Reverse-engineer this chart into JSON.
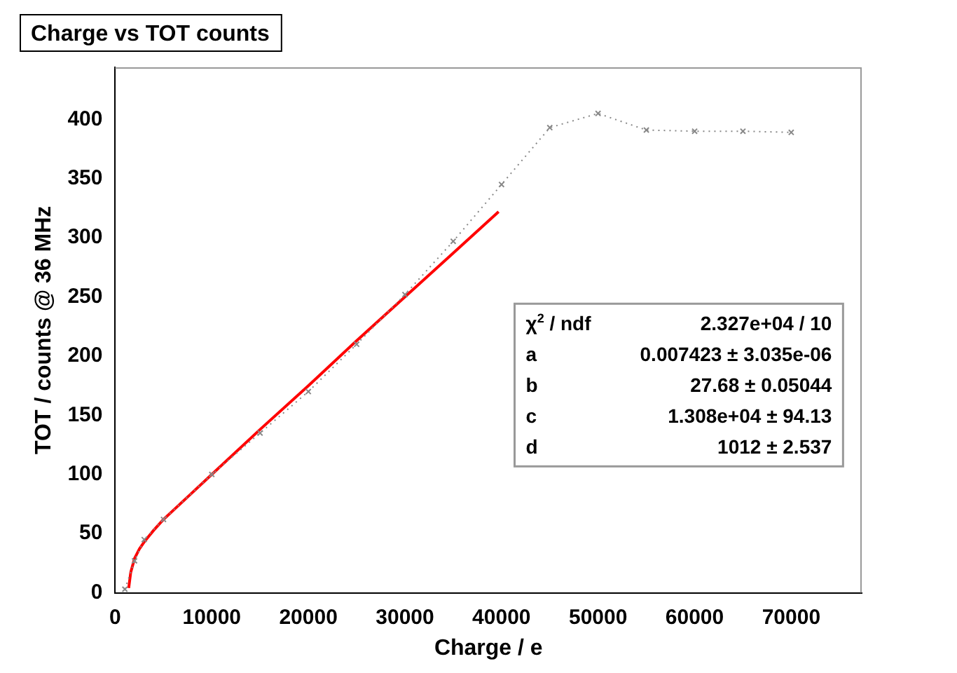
{
  "chart_data": {
    "type": "line",
    "title": "Charge vs TOT counts",
    "xlabel": "Charge / e",
    "ylabel": "TOT / counts @ 36 MHz",
    "xlim": [
      0,
      77300
    ],
    "xticks": [
      0,
      10000,
      20000,
      30000,
      40000,
      50000,
      60000,
      70000
    ],
    "ylim": [
      0,
      444
    ],
    "yticks": [
      0,
      50,
      100,
      150,
      200,
      250,
      300,
      350,
      400
    ],
    "grid": false,
    "legend": false,
    "series": [
      {
        "color": "#888888",
        "marker": "cross",
        "line_style": "dotted",
        "x": [
          1000,
          2000,
          3000,
          5000,
          10000,
          15000,
          20000,
          25000,
          30000,
          35000,
          40000,
          45000,
          50000,
          55000,
          60000,
          65000,
          70000
        ],
        "values": [
          3,
          27,
          45,
          62,
          100,
          135,
          170,
          210,
          252,
          297,
          345,
          393,
          405,
          391,
          390,
          390,
          389
        ]
      },
      {
        "color": "#ff0000",
        "marker": "none",
        "line_style": "solid",
        "x": [
          1400,
          1600,
          2000,
          2500,
          3000,
          4000,
          5000,
          7500,
          10000,
          15000,
          20000,
          25000,
          30000,
          35000,
          39700
        ],
        "values": [
          4,
          17,
          29,
          37,
          43,
          53,
          62,
          81,
          100,
          138,
          175,
          213,
          250,
          287,
          322
        ]
      }
    ],
    "annotations": [
      "χ$^{2}$ / ndf\t2.327e+04 / 10",
      "a\t0.007423 ± 3.035e-06",
      "b\t27.68 ± 0.05044",
      "c\t1.308e+04 ± 94.13",
      "d\t1012 ± 2.537"
    ]
  }
}
